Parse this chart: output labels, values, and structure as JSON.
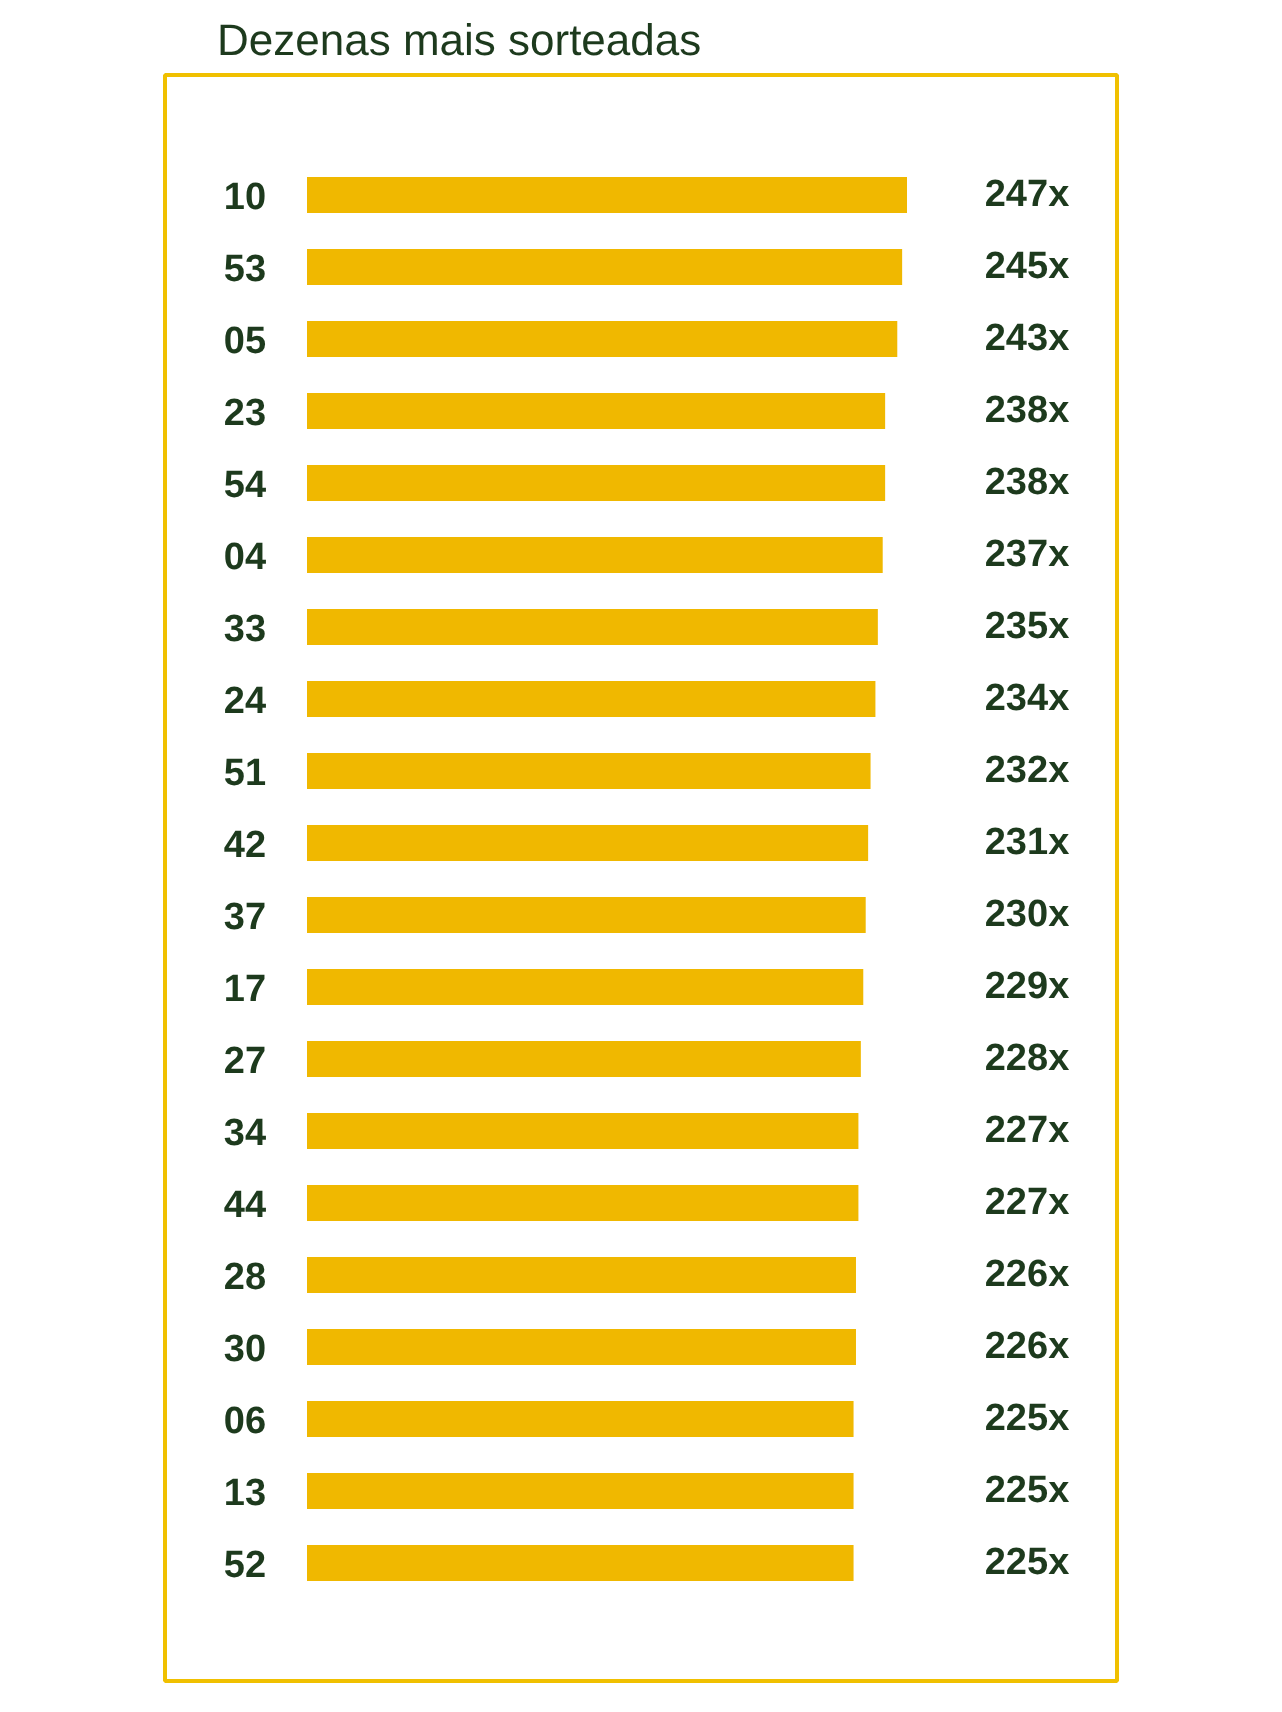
{
  "chart_data": {
    "type": "bar",
    "orientation": "horizontal",
    "title": "Dezenas mais sorteadas",
    "categories": [
      "10",
      "53",
      "05",
      "23",
      "54",
      "04",
      "33",
      "24",
      "51",
      "42",
      "37",
      "17",
      "27",
      "34",
      "44",
      "28",
      "30",
      "06",
      "13",
      "52"
    ],
    "values": [
      247,
      245,
      243,
      238,
      238,
      237,
      235,
      234,
      232,
      231,
      230,
      229,
      228,
      227,
      227,
      226,
      226,
      225,
      225,
      225
    ],
    "value_labels": [
      "247x",
      "245x",
      "243x",
      "238x",
      "238x",
      "237x",
      "235x",
      "234x",
      "232x",
      "231x",
      "230x",
      "229x",
      "228x",
      "227x",
      "227x",
      "226x",
      "226x",
      "225x",
      "225x",
      "225x"
    ],
    "color": "#f0b800",
    "grid": false,
    "tick_labels": false
  }
}
